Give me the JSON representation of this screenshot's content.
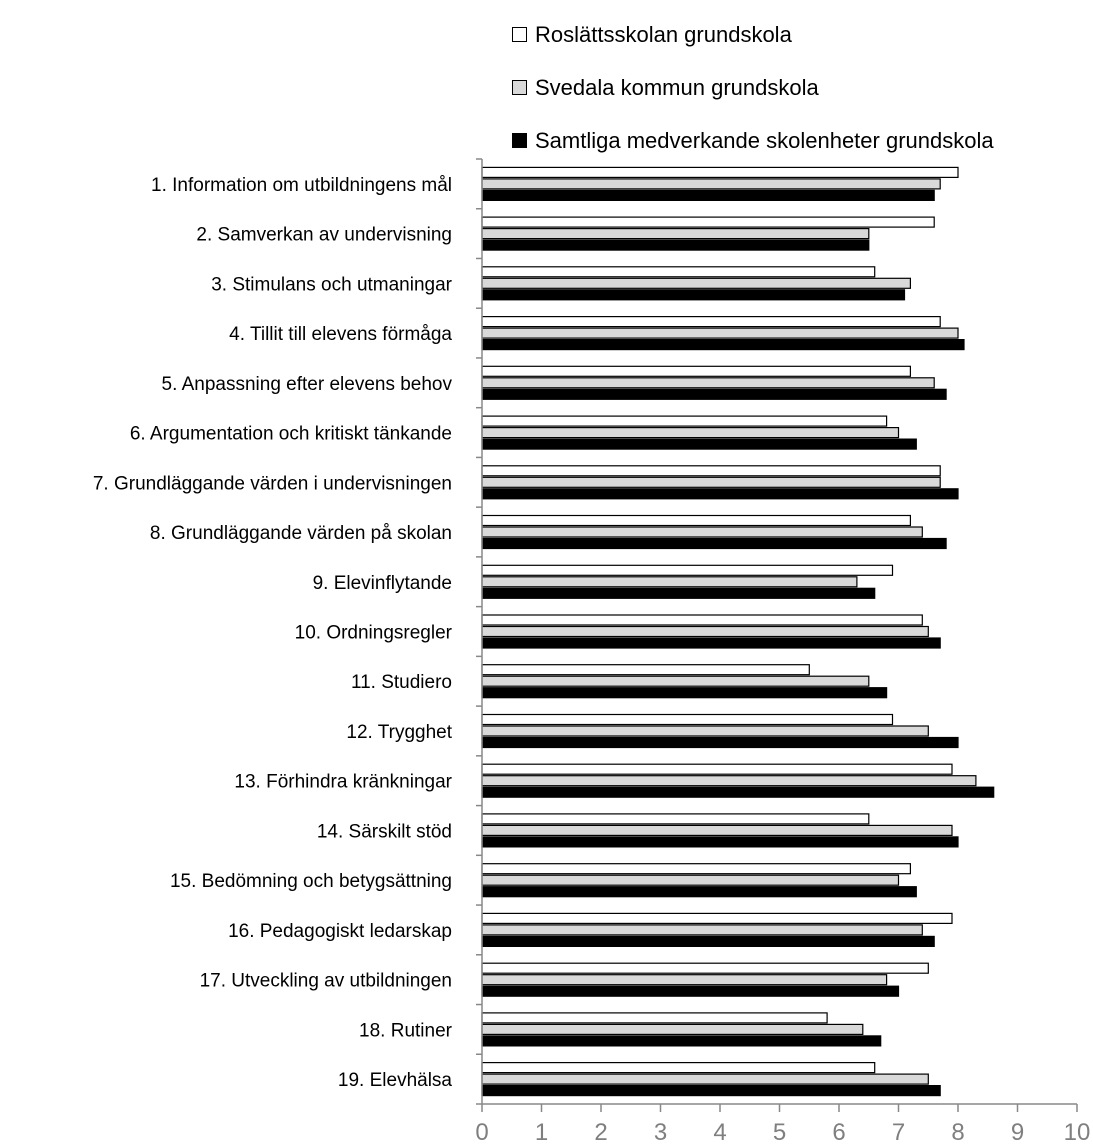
{
  "chart_data": {
    "type": "bar",
    "orientation": "horizontal",
    "categories": [
      "1. Information om utbildningens mål",
      "2. Samverkan av undervisning",
      "3. Stimulans och utmaningar",
      "4. Tillit till elevens förmåga",
      "5. Anpassning efter elevens behov",
      "6. Argumentation och kritiskt tänkande",
      "7. Grundläggande värden i undervisningen",
      "8. Grundläggande värden på skolan",
      "9. Elevinflytande",
      "10. Ordningsregler",
      "11. Studiero",
      "12. Trygghet",
      "13. Förhindra kränkningar",
      "14. Särskilt stöd",
      "15. Bedömning och betygsättning",
      "16. Pedagogiskt ledarskap",
      "17. Utveckling av utbildningen",
      "18. Rutiner",
      "19. Elevhälsa"
    ],
    "series": [
      {
        "name": "Roslättsskolan grundskola",
        "color": "#ffffff",
        "values": [
          8.0,
          7.6,
          6.6,
          7.7,
          7.2,
          6.8,
          7.7,
          7.2,
          6.9,
          7.4,
          5.5,
          6.9,
          7.9,
          6.5,
          7.2,
          7.9,
          7.5,
          5.8,
          6.6
        ]
      },
      {
        "name": "Svedala kommun grundskola",
        "color": "#d9d9d9",
        "values": [
          7.7,
          6.5,
          7.2,
          8.0,
          7.6,
          7.0,
          7.7,
          7.4,
          6.3,
          7.5,
          6.5,
          7.5,
          8.3,
          7.9,
          7.0,
          7.4,
          6.8,
          6.4,
          7.5
        ]
      },
      {
        "name": "Samtliga medverkande skolenheter grundskola",
        "color": "#000000",
        "values": [
          7.6,
          6.5,
          7.1,
          8.1,
          7.8,
          7.3,
          8.0,
          7.8,
          6.6,
          7.7,
          6.8,
          8.0,
          8.6,
          8.0,
          7.3,
          7.6,
          7.0,
          6.7,
          7.7
        ]
      }
    ],
    "x_ticks": [
      "0",
      "1",
      "2",
      "3",
      "4",
      "5",
      "6",
      "7",
      "8",
      "9",
      "10"
    ],
    "xlim": [
      0,
      10
    ],
    "grid": false,
    "legend_position": "top-right"
  }
}
